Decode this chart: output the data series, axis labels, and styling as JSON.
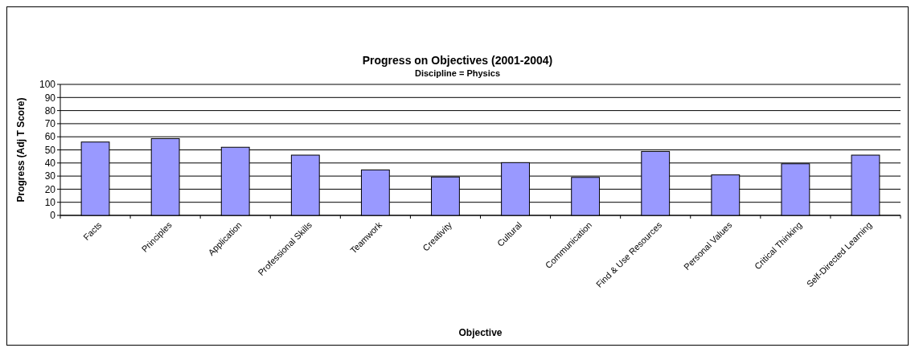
{
  "chart_data": {
    "type": "bar",
    "title": "Progress on Objectives (2001-2004)",
    "subtitle": "Discipline = Physics",
    "xlabel": "Objective",
    "ylabel": "Progress (Adj T Score)",
    "categories": [
      "Facts",
      "Principles",
      "Application",
      "Professional Skills",
      "Teamwork",
      "Creativity",
      "Cultural",
      "Communication",
      "Find & Use Resources",
      "Personal Values",
      "Critical Thinking",
      "Self-Directed Learning"
    ],
    "values": [
      56,
      58.6,
      52,
      46,
      34.7,
      29.3,
      40.3,
      29,
      48.8,
      30.9,
      39.4,
      46
    ],
    "color": "#9999ff",
    "ylim": [
      0,
      100
    ],
    "yticks": [
      0,
      10,
      20,
      30,
      40,
      50,
      60,
      70,
      80,
      90,
      100
    ],
    "grid": "y"
  }
}
